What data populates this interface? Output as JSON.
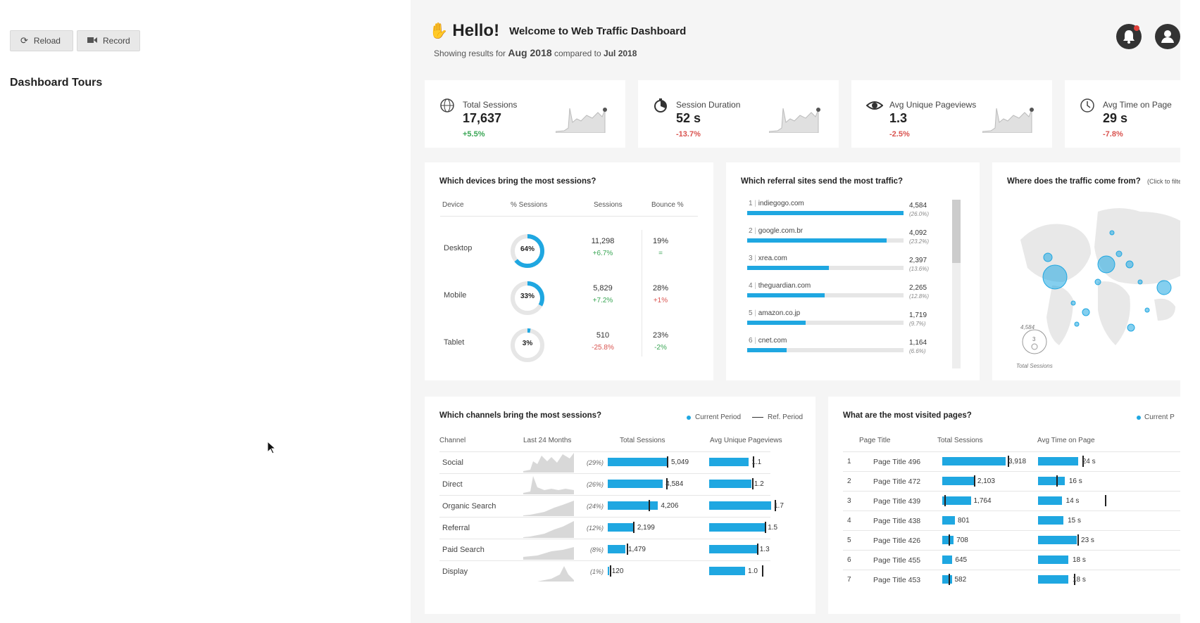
{
  "toolbar": {
    "reload_label": "Reload",
    "record_label": "Record"
  },
  "sidebar": {
    "title": "Dashboard Tours"
  },
  "header": {
    "hello": "Hello!",
    "welcome": "Welcome to Web Traffic Dashboard",
    "showing_prefix": "Showing results for",
    "period": "Aug 2018",
    "compared": "compared to",
    "ref_period": "Jul 2018"
  },
  "kpis": [
    {
      "label": "Total Sessions",
      "value": "17,637",
      "change": "+5.5%",
      "icon": "globe-icon"
    },
    {
      "label": "Session Duration",
      "value": "52 s",
      "change": "-13.7%",
      "icon": "stopwatch-icon"
    },
    {
      "label": "Avg Unique Pageviews",
      "value": "1.3",
      "change": "-2.5%",
      "icon": "eye-icon"
    },
    {
      "label": "Avg Time on Page",
      "value": "29 s",
      "change": "-7.8%",
      "icon": "clock-icon"
    }
  ],
  "devices": {
    "title": "Which devices bring the most sessions?",
    "headers": [
      "Device",
      "% Sessions",
      "Sessions",
      "Bounce %"
    ],
    "rows": [
      {
        "name": "Desktop",
        "pct": "64%",
        "pct_value": 64,
        "sessions": "11,298",
        "sessions_chg": "+6.7%",
        "bounce": "19%",
        "bounce_chg": "="
      },
      {
        "name": "Mobile",
        "pct": "33%",
        "pct_value": 33,
        "sessions": "5,829",
        "sessions_chg": "+7.2%",
        "bounce": "28%",
        "bounce_chg": "+1%"
      },
      {
        "name": "Tablet",
        "pct": "3%",
        "pct_value": 3,
        "sessions": "510",
        "sessions_chg": "-25.8%",
        "bounce": "23%",
        "bounce_chg": "-2%"
      }
    ]
  },
  "referrals": {
    "title": "Which referral sites send the most traffic?",
    "rows": [
      {
        "rank": "1",
        "site": "indiegogo.com",
        "value": "4,584",
        "pct": "(26.0%)",
        "share": 1.0
      },
      {
        "rank": "2",
        "site": "google.com.br",
        "value": "4,092",
        "pct": "(23.2%)",
        "share": 0.893
      },
      {
        "rank": "3",
        "site": "xrea.com",
        "value": "2,397",
        "pct": "(13.6%)",
        "share": 0.523
      },
      {
        "rank": "4",
        "site": "theguardian.com",
        "value": "2,265",
        "pct": "(12.8%)",
        "share": 0.494
      },
      {
        "rank": "5",
        "site": "amazon.co.jp",
        "value": "1,719",
        "pct": "(9.7%)",
        "share": 0.375
      },
      {
        "rank": "6",
        "site": "cnet.com",
        "value": "1,164",
        "pct": "(6.6%)",
        "share": 0.254
      }
    ]
  },
  "map": {
    "title": "Where does the traffic come from?",
    "hint": "(Click to filte",
    "legend_value": "4,584",
    "legend_small": "3",
    "legend_caption": "Total Sessions"
  },
  "channels": {
    "title": "Which channels bring the most sessions?",
    "legend_current": "Current Period",
    "legend_ref": "Ref. Period",
    "headers": [
      "Channel",
      "Last 24 Months",
      "Total Sessions",
      "Avg Unique Pageviews"
    ],
    "rows": [
      {
        "name": "Social",
        "pct": "(29%)",
        "sessions": "5,049",
        "sessions_share": 1.0,
        "ref_share": 0.98,
        "pv": "1.1",
        "pv_share": 0.64,
        "pv_ref": 0.7
      },
      {
        "name": "Direct",
        "pct": "(26%)",
        "sessions": "4,584",
        "sessions_share": 0.91,
        "ref_share": 0.97,
        "pv": "1.2",
        "pv_share": 0.68,
        "pv_ref": 0.69
      },
      {
        "name": "Organic Search",
        "pct": "(24%)",
        "sessions": "4,206",
        "sessions_share": 0.83,
        "ref_share": 0.68,
        "pv": "1.7",
        "pv_share": 1.0,
        "pv_ref": 1.06
      },
      {
        "name": "Referral",
        "pct": "(12%)",
        "sessions": "2,199",
        "sessions_share": 0.44,
        "ref_share": 0.42,
        "pv": "1.5",
        "pv_share": 0.9,
        "pv_ref": 0.9
      },
      {
        "name": "Paid Search",
        "pct": "(8%)",
        "sessions": "1,479",
        "sessions_share": 0.29,
        "ref_share": 0.31,
        "pv": "1.3",
        "pv_share": 0.77,
        "pv_ref": 0.77
      },
      {
        "name": "Display",
        "pct": "(1%)",
        "sessions": "120",
        "sessions_share": 0.02,
        "ref_share": 0.04,
        "pv": "1.0",
        "pv_share": 0.58,
        "pv_ref": 0.85
      }
    ]
  },
  "pages": {
    "title": "What are the most visited pages?",
    "legend_current": "Current P",
    "headers": [
      "Page Title",
      "Total Sessions",
      "Avg Time on Page"
    ],
    "rows": [
      {
        "rank": "1",
        "title": "Page Title 496",
        "sessions": "3,918",
        "s_share": 1.0,
        "s_ref": 1.03,
        "time": "24 s",
        "t_share": 0.66,
        "t_ref": 0.73
      },
      {
        "rank": "2",
        "title": "Page Title 472",
        "sessions": "2,103",
        "s_share": 0.51,
        "s_ref": 0.5,
        "time": "16 s",
        "t_share": 0.44,
        "t_ref": 0.3
      },
      {
        "rank": "3",
        "title": "Page Title 439",
        "sessions": "1,764",
        "s_share": 0.45,
        "s_ref": 0.03,
        "time": "14 s",
        "t_share": 0.39,
        "t_ref": 1.1
      },
      {
        "rank": "4",
        "title": "Page Title 438",
        "sessions": "801",
        "s_share": 0.2,
        "s_ref": -1,
        "time": "15 s",
        "t_share": 0.42,
        "t_ref": -1
      },
      {
        "rank": "5",
        "title": "Page Title 426",
        "sessions": "708",
        "s_share": 0.18,
        "s_ref": 0.1,
        "time": "23 s",
        "t_share": 0.64,
        "t_ref": 0.65
      },
      {
        "rank": "6",
        "title": "Page Title 455",
        "sessions": "645",
        "s_share": 0.16,
        "s_ref": -1,
        "time": "18 s",
        "t_share": 0.5,
        "t_ref": -1
      },
      {
        "rank": "7",
        "title": "Page Title 453",
        "sessions": "582",
        "s_share": 0.15,
        "s_ref": 0.1,
        "time": "18 s",
        "t_share": 0.5,
        "t_ref": 0.59
      }
    ]
  },
  "colors": {
    "accent": "#1fa7e1",
    "positive": "#3aa655",
    "negative": "#d9534f",
    "panel": "#f5f5f5"
  }
}
